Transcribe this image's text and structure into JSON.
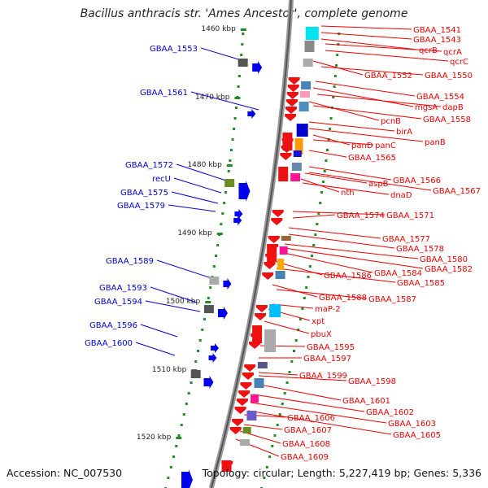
{
  "title": "Bacillus anthracis str. 'Ames Ancestor', complete genome",
  "accession_text": "Accession: NC_007530",
  "topology_text": "Topology: circular; Length: 5,227,419 bp; Genes: 5,336",
  "colors": {
    "forward_label": "#0000cc",
    "reverse_label": "#ee0000",
    "backbone": "#888888",
    "tick": "#228b22"
  },
  "ticks": [
    "1460 kbp",
    "1470 kbp",
    "1480 kbp",
    "1490 kbp",
    "1500 kbp",
    "1510 kbp",
    "1520 kbp"
  ],
  "forward_genes": [
    "GBAA_1553",
    "GBAA_1561",
    "GBAA_1572",
    "recU",
    "GBAA_1575",
    "GBAA_1579",
    "GBAA_1589",
    "GBAA_1593",
    "GBAA_1594",
    "GBAA_1596",
    "GBAA_1600"
  ],
  "reverse_genes": [
    "GBAA_1541",
    "GBAA_1543",
    "qcrB",
    "qcrA",
    "qcrC",
    "GBAA_1552",
    "GBAA_1550",
    "GBAA_1554",
    "mgsA",
    "dapB",
    "pcnB",
    "GBAA_1558",
    "birA",
    "panB",
    "panD",
    "panC",
    "GBAA_1565",
    "GBAA_1566",
    "aspB",
    "nth",
    "dnaD",
    "GBAA_1567",
    "GBAA_1574",
    "GBAA_1571",
    "GBAA_1577",
    "GBAA_1578",
    "GBAA_1580",
    "GBAA_1584",
    "GBAA_1582",
    "GBAA_1586",
    "GBAA_1585",
    "GBAA_1588",
    "GBAA_1587",
    "maP-2",
    "xpt",
    "pbuX",
    "GBAA_1595",
    "GBAA_1597",
    "GBAA_1599",
    "GBAA_1598",
    "GBAA_1601",
    "GBAA_1602",
    "GBAA_1603",
    "GBAA_1606",
    "GBAA_1605",
    "GBAA_1607",
    "GBAA_1608",
    "GBAA_1609"
  ]
}
